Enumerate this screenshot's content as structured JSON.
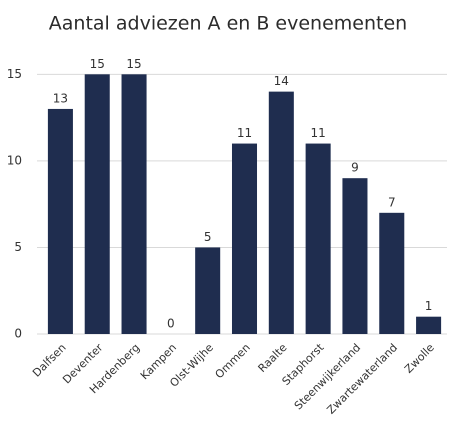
{
  "chart_data": {
    "type": "bar",
    "title": "Aantal adviezen A en B evenementen",
    "categories": [
      "Dalfsen",
      "Deventer",
      "Hardenberg",
      "Kampen",
      "Olst-Wijhe",
      "Ommen",
      "Raalte",
      "Staphorst",
      "Steenwijkerland",
      "Zwartewaterland",
      "Zwolle"
    ],
    "values": [
      13,
      15,
      15,
      0,
      5,
      11,
      14,
      11,
      9,
      7,
      1
    ],
    "color": "#1f2d4f",
    "ylim": [
      0,
      16
    ],
    "yticks": [
      0,
      5,
      10,
      15
    ],
    "grid": true
  }
}
